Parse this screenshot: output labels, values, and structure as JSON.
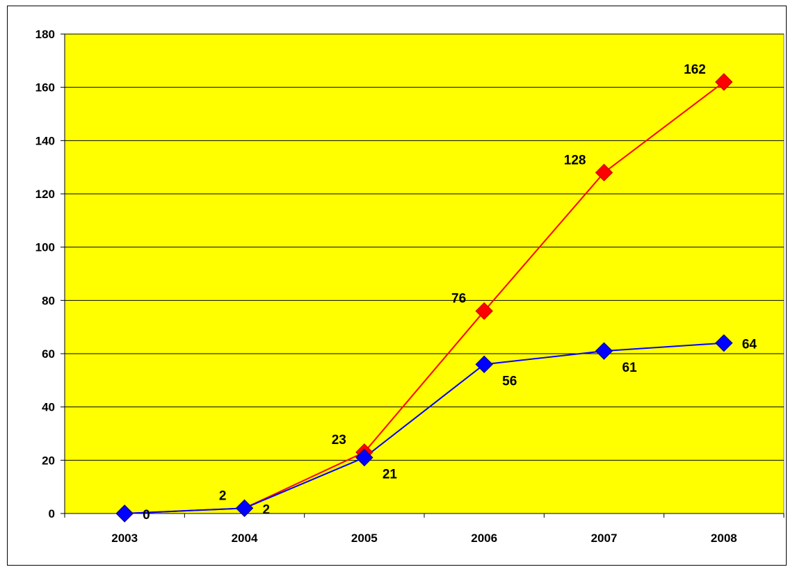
{
  "chart_data": {
    "type": "line",
    "categories": [
      "2003",
      "2004",
      "2005",
      "2006",
      "2007",
      "2008"
    ],
    "series": [
      {
        "values": [
          0,
          2,
          23,
          76,
          128,
          162
        ],
        "color": "#ff0000"
      },
      {
        "values": [
          0,
          2,
          21,
          56,
          61,
          64
        ],
        "color": "#0000ff"
      }
    ],
    "ylim": [
      0,
      180
    ],
    "yticks": [
      0,
      20,
      40,
      60,
      80,
      100,
      120,
      140,
      160,
      180
    ],
    "grid": true,
    "plot_background": "#ffff00",
    "title": "",
    "xlabel": "",
    "ylabel": ""
  }
}
